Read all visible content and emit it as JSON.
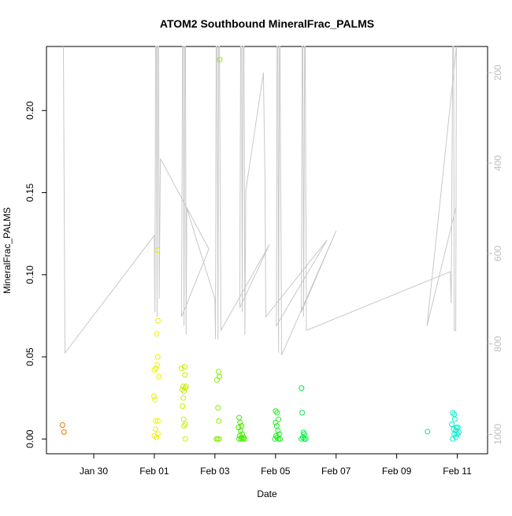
{
  "chart_data": {
    "type": "scatter",
    "title": "ATOM2 Southbound MineralFrac_PALMS",
    "xlabel": "Date",
    "ylabel": "MineralFrac_PALMS",
    "x_tick_labels": [
      "Jan 30",
      "Feb 01",
      "Feb 03",
      "Feb 05",
      "Feb 07",
      "Feb 09",
      "Feb 11"
    ],
    "x_tick_values": [
      1,
      3,
      5,
      7,
      9,
      11,
      13
    ],
    "y_tick_labels": [
      "0.00",
      "0.05",
      "0.10",
      "0.15",
      "0.20"
    ],
    "y_tick_values": [
      0.0,
      0.05,
      0.1,
      0.15,
      0.2
    ],
    "y_right_tick_labels": [
      "200",
      "400",
      "600",
      "800",
      "1000"
    ],
    "y_right_tick_values": [
      200,
      400,
      600,
      800,
      1000
    ],
    "xlim": [
      -0.56,
      14.0
    ],
    "ylim": [
      -0.009,
      0.239
    ],
    "y_right_lim": [
      1043,
      142
    ],
    "right_axis_color": "#bebebe",
    "altitude_line_color": "#c8c8c8",
    "series": [
      {
        "color": "#ee7700",
        "points": [
          [
            -0.03,
            0.0085
          ],
          [
            0.02,
            0.0042
          ]
        ]
      },
      {
        "color": "#eeee00",
        "points": [
          [
            3.1,
            0.115
          ],
          [
            3.12,
            0.072
          ],
          [
            3.08,
            0.064
          ],
          [
            3.11,
            0.05
          ],
          [
            3.1,
            0.045
          ],
          [
            3.05,
            0.043
          ],
          [
            3.0,
            0.042
          ],
          [
            3.15,
            0.038
          ],
          [
            2.99,
            0.026
          ],
          [
            3.02,
            0.024
          ],
          [
            3.05,
            0.011
          ],
          [
            3.12,
            0.011
          ],
          [
            3.04,
            0.006
          ],
          [
            3.12,
            0.003
          ],
          [
            3.0,
            0.002
          ],
          [
            3.07,
            0.001
          ]
        ]
      },
      {
        "color": "#ccee00",
        "points": [
          [
            3.9,
            0.043
          ],
          [
            4.0,
            0.044
          ],
          [
            4.01,
            0.039
          ],
          [
            3.95,
            0.032
          ],
          [
            4.02,
            0.031
          ],
          [
            3.92,
            0.03
          ],
          [
            3.98,
            0.029
          ],
          [
            4.05,
            0.032
          ],
          [
            3.96,
            0.025
          ],
          [
            3.93,
            0.02
          ],
          [
            3.97,
            0.012
          ],
          [
            4.02,
            0.009
          ],
          [
            3.98,
            0.008
          ],
          [
            4.02,
            0.0
          ]
        ]
      },
      {
        "color": "#88ee00",
        "points": [
          [
            5.16,
            0.231
          ],
          [
            5.12,
            0.041
          ],
          [
            5.15,
            0.038
          ],
          [
            5.07,
            0.036
          ],
          [
            5.1,
            0.019
          ],
          [
            5.13,
            0.011
          ],
          [
            5.05,
            0.0
          ],
          [
            5.09,
            0.0
          ],
          [
            5.14,
            0.0
          ]
        ]
      },
      {
        "color": "#44ee00",
        "points": [
          [
            5.8,
            0.013
          ],
          [
            5.83,
            0.01
          ],
          [
            5.78,
            0.007
          ],
          [
            5.88,
            0.008
          ],
          [
            5.85,
            0.005
          ],
          [
            5.9,
            0.003
          ],
          [
            5.82,
            0.002
          ],
          [
            5.88,
            0.001
          ],
          [
            5.95,
            0.001
          ],
          [
            5.8,
            0.0
          ],
          [
            5.86,
            0.0
          ],
          [
            5.92,
            0.0
          ],
          [
            5.97,
            0.0
          ]
        ]
      },
      {
        "color": "#22ee22",
        "points": [
          [
            7.0,
            0.017
          ],
          [
            7.05,
            0.016
          ],
          [
            7.1,
            0.012
          ],
          [
            7.0,
            0.01
          ],
          [
            7.04,
            0.008
          ],
          [
            7.08,
            0.005
          ],
          [
            7.02,
            0.002
          ],
          [
            7.12,
            0.003
          ],
          [
            7.05,
            0.001
          ],
          [
            7.1,
            0.0
          ],
          [
            7.15,
            0.0
          ],
          [
            6.98,
            0.0
          ]
        ]
      },
      {
        "color": "#00ee44",
        "points": [
          [
            7.86,
            0.031
          ],
          [
            7.88,
            0.016
          ],
          [
            7.92,
            0.004
          ],
          [
            7.95,
            0.003
          ],
          [
            7.9,
            0.001
          ],
          [
            7.85,
            0.0
          ],
          [
            7.95,
            0.0
          ],
          [
            8.0,
            0.0
          ]
        ]
      },
      {
        "color": "#00ee88",
        "points": [
          [
            12.02,
            0.0045
          ]
        ]
      },
      {
        "color": "#00eecc",
        "points": [
          [
            12.85,
            0.016
          ],
          [
            12.9,
            0.015
          ],
          [
            12.92,
            0.012
          ],
          [
            12.82,
            0.009
          ],
          [
            12.97,
            0.007
          ],
          [
            13.02,
            0.007
          ],
          [
            12.88,
            0.006
          ],
          [
            12.95,
            0.005
          ],
          [
            13.05,
            0.004
          ],
          [
            12.9,
            0.003
          ],
          [
            13.0,
            0.003
          ],
          [
            12.85,
            0.0
          ],
          [
            12.95,
            0.001
          ]
        ]
      }
    ],
    "altitude_path": [
      [
        0.0,
        142
      ],
      [
        0.05,
        820
      ],
      [
        3.0,
        560
      ],
      [
        3.02,
        730
      ],
      [
        3.04,
        142
      ],
      [
        3.07,
        142
      ],
      [
        3.09,
        740
      ],
      [
        3.11,
        142
      ],
      [
        3.14,
        142
      ],
      [
        3.16,
        700
      ],
      [
        3.2,
        390
      ],
      [
        4.8,
        590
      ],
      [
        3.9,
        740
      ],
      [
        3.93,
        142
      ],
      [
        3.96,
        142
      ],
      [
        3.98,
        760
      ],
      [
        4.0,
        142
      ],
      [
        4.03,
        142
      ],
      [
        4.05,
        780
      ],
      [
        4.07,
        500
      ],
      [
        5.0,
        700
      ],
      [
        5.02,
        790
      ],
      [
        5.04,
        142
      ],
      [
        5.07,
        142
      ],
      [
        5.1,
        790
      ],
      [
        5.12,
        142
      ],
      [
        5.15,
        142
      ],
      [
        5.2,
        770
      ],
      [
        6.8,
        580
      ],
      [
        5.82,
        720
      ],
      [
        5.85,
        142
      ],
      [
        5.88,
        142
      ],
      [
        5.9,
        730
      ],
      [
        5.93,
        142
      ],
      [
        5.96,
        142
      ],
      [
        5.99,
        780
      ],
      [
        6.02,
        460
      ],
      [
        6.6,
        200
      ],
      [
        6.65,
        420
      ],
      [
        6.68,
        740
      ],
      [
        8.7,
        570
      ],
      [
        7.03,
        760
      ],
      [
        7.05,
        142
      ],
      [
        7.08,
        142
      ],
      [
        7.1,
        820
      ],
      [
        7.13,
        142
      ],
      [
        7.15,
        142
      ],
      [
        7.2,
        825
      ],
      [
        9.0,
        550
      ],
      [
        7.85,
        730
      ],
      [
        7.88,
        142
      ],
      [
        7.9,
        142
      ],
      [
        7.93,
        740
      ],
      [
        7.96,
        142
      ],
      [
        7.98,
        142
      ],
      [
        8.02,
        770
      ],
      [
        12.77,
        640
      ],
      [
        12.8,
        710
      ],
      [
        12.85,
        142
      ],
      [
        12.88,
        142
      ],
      [
        12.9,
        770
      ],
      [
        12.95,
        770
      ],
      [
        12.97,
        142
      ],
      [
        12.0,
        760
      ],
      [
        12.95,
        500
      ]
    ]
  }
}
